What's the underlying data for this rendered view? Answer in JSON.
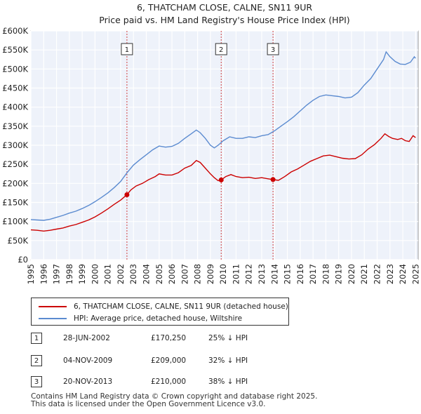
{
  "chart_data": {
    "type": "line",
    "title": "6, THATCHAM CLOSE, CALNE, SN11 9UR",
    "subtitle": "Price paid vs. HM Land Registry's House Price Index (HPI)",
    "xlabel": "",
    "ylabel": "",
    "xlim": [
      1995,
      2025.2
    ],
    "ylim": [
      0,
      600000
    ],
    "y_ticks": [
      {
        "value": 0,
        "label": "£0"
      },
      {
        "value": 50000,
        "label": "£50K"
      },
      {
        "value": 100000,
        "label": "£100K"
      },
      {
        "value": 150000,
        "label": "£150K"
      },
      {
        "value": 200000,
        "label": "£200K"
      },
      {
        "value": 250000,
        "label": "£250K"
      },
      {
        "value": 300000,
        "label": "£300K"
      },
      {
        "value": 350000,
        "label": "£350K"
      },
      {
        "value": 400000,
        "label": "£400K"
      },
      {
        "value": 450000,
        "label": "£450K"
      },
      {
        "value": 500000,
        "label": "£500K"
      },
      {
        "value": 550000,
        "label": "£550K"
      },
      {
        "value": 600000,
        "label": "£600K"
      }
    ],
    "x_ticks": [
      "1995",
      "1996",
      "1997",
      "1998",
      "1999",
      "2000",
      "2001",
      "2002",
      "2003",
      "2004",
      "2005",
      "2006",
      "2007",
      "2008",
      "2009",
      "2010",
      "2011",
      "2012",
      "2013",
      "2014",
      "2015",
      "2016",
      "2017",
      "2018",
      "2019",
      "2020",
      "2021",
      "2022",
      "2023",
      "2024",
      "2025"
    ],
    "grid": true,
    "series": [
      {
        "name": "6, THATCHAM CLOSE, CALNE, SN11 9UR (detached house)",
        "color": "#cc0000",
        "points": [
          [
            1995.0,
            78000
          ],
          [
            1995.5,
            77000
          ],
          [
            1996.0,
            75000
          ],
          [
            1996.5,
            77000
          ],
          [
            1997.0,
            80000
          ],
          [
            1997.5,
            83000
          ],
          [
            1998.0,
            88000
          ],
          [
            1998.5,
            92000
          ],
          [
            1999.0,
            98000
          ],
          [
            1999.5,
            104000
          ],
          [
            2000.0,
            112000
          ],
          [
            2000.5,
            122000
          ],
          [
            2001.0,
            133000
          ],
          [
            2001.5,
            145000
          ],
          [
            2002.0,
            156000
          ],
          [
            2002.49,
            170250
          ],
          [
            2002.8,
            183000
          ],
          [
            2003.2,
            193000
          ],
          [
            2003.7,
            200000
          ],
          [
            2004.2,
            210000
          ],
          [
            2004.7,
            218000
          ],
          [
            2005.0,
            225000
          ],
          [
            2005.5,
            222000
          ],
          [
            2006.0,
            222000
          ],
          [
            2006.5,
            228000
          ],
          [
            2007.0,
            240000
          ],
          [
            2007.5,
            247000
          ],
          [
            2007.9,
            260000
          ],
          [
            2008.2,
            255000
          ],
          [
            2008.6,
            240000
          ],
          [
            2009.0,
            225000
          ],
          [
            2009.3,
            215000
          ],
          [
            2009.6,
            207000
          ],
          [
            2009.84,
            209000
          ],
          [
            2010.2,
            218000
          ],
          [
            2010.6,
            223000
          ],
          [
            2011.0,
            218000
          ],
          [
            2011.5,
            215000
          ],
          [
            2012.0,
            216000
          ],
          [
            2012.5,
            213000
          ],
          [
            2013.0,
            215000
          ],
          [
            2013.5,
            212000
          ],
          [
            2013.88,
            210000
          ],
          [
            2014.3,
            208000
          ],
          [
            2014.8,
            218000
          ],
          [
            2015.3,
            230000
          ],
          [
            2015.8,
            238000
          ],
          [
            2016.3,
            248000
          ],
          [
            2016.8,
            258000
          ],
          [
            2017.3,
            265000
          ],
          [
            2017.8,
            272000
          ],
          [
            2018.3,
            274000
          ],
          [
            2018.8,
            270000
          ],
          [
            2019.3,
            266000
          ],
          [
            2019.8,
            264000
          ],
          [
            2020.3,
            265000
          ],
          [
            2020.8,
            275000
          ],
          [
            2021.3,
            290000
          ],
          [
            2021.8,
            302000
          ],
          [
            2022.3,
            318000
          ],
          [
            2022.6,
            330000
          ],
          [
            2022.9,
            323000
          ],
          [
            2023.2,
            318000
          ],
          [
            2023.6,
            315000
          ],
          [
            2023.9,
            318000
          ],
          [
            2024.2,
            312000
          ],
          [
            2024.5,
            310000
          ],
          [
            2024.8,
            325000
          ],
          [
            2025.0,
            320000
          ]
        ]
      },
      {
        "name": "HPI: Average price, detached house, Wiltshire",
        "color": "#5b8bd0",
        "points": [
          [
            1995.0,
            105000
          ],
          [
            1995.5,
            104000
          ],
          [
            1996.0,
            103000
          ],
          [
            1996.5,
            106000
          ],
          [
            1997.0,
            111000
          ],
          [
            1997.5,
            116000
          ],
          [
            1998.0,
            122000
          ],
          [
            1998.5,
            127000
          ],
          [
            1999.0,
            134000
          ],
          [
            1999.5,
            142000
          ],
          [
            2000.0,
            152000
          ],
          [
            2000.5,
            163000
          ],
          [
            2001.0,
            175000
          ],
          [
            2001.5,
            189000
          ],
          [
            2002.0,
            205000
          ],
          [
            2002.5,
            228000
          ],
          [
            2003.0,
            248000
          ],
          [
            2003.5,
            262000
          ],
          [
            2004.0,
            275000
          ],
          [
            2004.5,
            288000
          ],
          [
            2005.0,
            298000
          ],
          [
            2005.5,
            295000
          ],
          [
            2006.0,
            297000
          ],
          [
            2006.5,
            305000
          ],
          [
            2007.0,
            318000
          ],
          [
            2007.5,
            330000
          ],
          [
            2007.9,
            340000
          ],
          [
            2008.2,
            333000
          ],
          [
            2008.6,
            318000
          ],
          [
            2009.0,
            300000
          ],
          [
            2009.3,
            293000
          ],
          [
            2009.6,
            300000
          ],
          [
            2010.0,
            312000
          ],
          [
            2010.5,
            322000
          ],
          [
            2011.0,
            318000
          ],
          [
            2011.5,
            318000
          ],
          [
            2012.0,
            322000
          ],
          [
            2012.5,
            320000
          ],
          [
            2013.0,
            325000
          ],
          [
            2013.5,
            328000
          ],
          [
            2014.0,
            338000
          ],
          [
            2014.5,
            350000
          ],
          [
            2015.0,
            362000
          ],
          [
            2015.5,
            375000
          ],
          [
            2016.0,
            390000
          ],
          [
            2016.5,
            405000
          ],
          [
            2017.0,
            418000
          ],
          [
            2017.5,
            428000
          ],
          [
            2018.0,
            432000
          ],
          [
            2018.5,
            430000
          ],
          [
            2019.0,
            428000
          ],
          [
            2019.5,
            424000
          ],
          [
            2020.0,
            426000
          ],
          [
            2020.5,
            438000
          ],
          [
            2021.0,
            458000
          ],
          [
            2021.5,
            475000
          ],
          [
            2022.0,
            500000
          ],
          [
            2022.5,
            525000
          ],
          [
            2022.7,
            545000
          ],
          [
            2023.0,
            532000
          ],
          [
            2023.4,
            520000
          ],
          [
            2023.8,
            513000
          ],
          [
            2024.2,
            512000
          ],
          [
            2024.6,
            518000
          ],
          [
            2024.9,
            532000
          ],
          [
            2025.0,
            528000
          ]
        ]
      }
    ],
    "sales": [
      {
        "id": "1",
        "year": 2002.49,
        "price": 170250
      },
      {
        "id": "2",
        "year": 2009.84,
        "price": 209000
      },
      {
        "id": "3",
        "year": 2013.88,
        "price": 210000
      }
    ]
  },
  "legend": {
    "property": "6, THATCHAM CLOSE, CALNE, SN11 9UR (detached house)",
    "hpi": "HPI: Average price, detached house, Wiltshire",
    "property_color": "#cc0000",
    "hpi_color": "#5b8bd0"
  },
  "sales_table": [
    {
      "num": "1",
      "date": "28-JUN-2002",
      "price": "£170,250",
      "hpi": "25% ↓ HPI"
    },
    {
      "num": "2",
      "date": "04-NOV-2009",
      "price": "£209,000",
      "hpi": "32% ↓ HPI"
    },
    {
      "num": "3",
      "date": "20-NOV-2013",
      "price": "£210,000",
      "hpi": "38% ↓ HPI"
    }
  ],
  "footer": {
    "line1": "Contains HM Land Registry data © Crown copyright and database right 2025.",
    "line2": "This data is licensed under the Open Government Licence v3.0."
  }
}
